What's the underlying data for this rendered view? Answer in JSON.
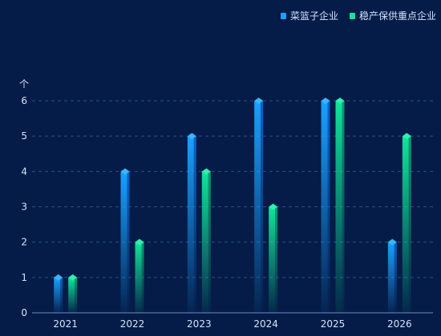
{
  "chart_data": {
    "type": "bar",
    "categories": [
      "2021",
      "2022",
      "2023",
      "2024",
      "2025",
      "2026"
    ],
    "series": [
      {
        "name": "菜篮子企业",
        "values": [
          1,
          4,
          5,
          6,
          6,
          2
        ],
        "color": "#1aa0ff"
      },
      {
        "name": "稳产保供重点企业",
        "values": [
          1,
          2,
          4,
          3,
          6,
          5
        ],
        "color": "#12e39a"
      }
    ],
    "ylabel": "个",
    "ylim": [
      0,
      6
    ],
    "yticks": [
      0,
      1,
      2,
      3,
      4,
      5,
      6
    ],
    "grid": true,
    "legend_position": "top-right",
    "colors": {
      "background": "#041c47",
      "grid": "#3b5ca2",
      "axis_text": "#d6e4ff"
    }
  }
}
